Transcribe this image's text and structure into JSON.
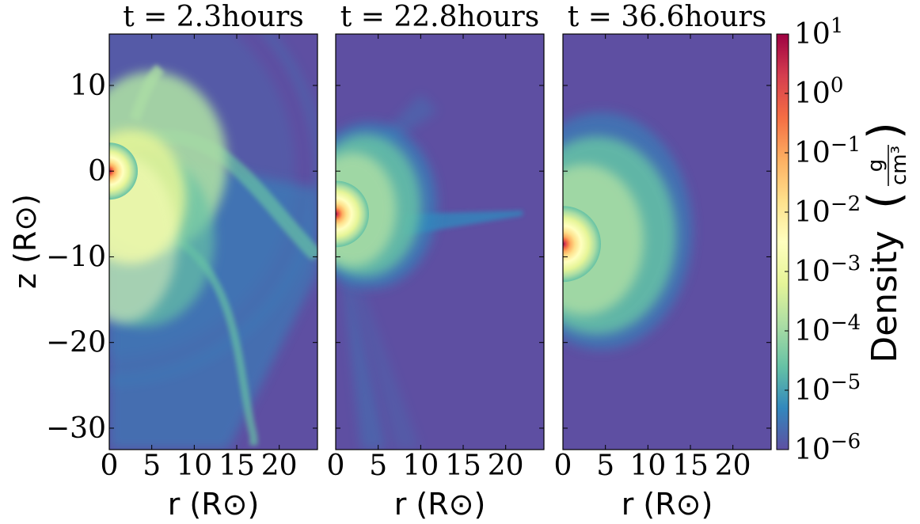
{
  "chart_data": {
    "type": "heatmap",
    "panels": [
      {
        "title": "t = 2.3hours",
        "xlabel": "r  (R$_\\odot$)",
        "ylabel": "z  (R$_\\odot$)",
        "xlim": [
          0,
          24.5
        ],
        "ylim": [
          -32.5,
          16
        ],
        "xticks": [
          0,
          5,
          10,
          15,
          20
        ],
        "yticks": [
          10,
          0,
          -10,
          -20,
          -30
        ],
        "xtick_labels": [
          "0",
          "5",
          "10",
          "15",
          "20"
        ],
        "ytick_labels": [
          "10",
          "0",
          "−10",
          "−20",
          "−30"
        ],
        "core_center": [
          0,
          0
        ]
      },
      {
        "title": "t = 22.8hours",
        "xlabel": "r  (R$_\\odot$)",
        "xlim": [
          0,
          24.5
        ],
        "ylim": [
          -32.5,
          16
        ],
        "xticks": [
          0,
          5,
          10,
          15,
          20
        ],
        "xtick_labels": [
          "0",
          "5",
          "10",
          "15",
          "20"
        ],
        "core_center": [
          0,
          -5
        ]
      },
      {
        "title": "t = 36.6hours",
        "xlabel": "r  (R$_\\odot$)",
        "xlim": [
          0,
          24.5
        ],
        "ylim": [
          -32.5,
          16
        ],
        "xticks": [
          0,
          5,
          10,
          15,
          20
        ],
        "xtick_labels": [
          "0",
          "5",
          "10",
          "15",
          "20"
        ],
        "core_center": [
          0,
          -8.5
        ]
      }
    ],
    "colorbar": {
      "label": "Density",
      "unit_numerator": "g",
      "unit_denominator": "cm³",
      "scale": "log",
      "range": [
        1e-06,
        10
      ],
      "colormap": "Spectral_r",
      "ticks": [
        {
          "base": "10",
          "exp": "1"
        },
        {
          "base": "10",
          "exp": "0"
        },
        {
          "base": "10",
          "exp": "−1"
        },
        {
          "base": "10",
          "exp": "−2"
        },
        {
          "base": "10",
          "exp": "−3"
        },
        {
          "base": "10",
          "exp": "−4"
        },
        {
          "base": "10",
          "exp": "−5"
        },
        {
          "base": "10",
          "exp": "−6"
        }
      ]
    },
    "colors": {
      "background": "#5e4fa2",
      "c_blue": "#3288bd",
      "c_teal": "#66c2a5",
      "c_green": "#abdda4",
      "c_lime": "#e6f598",
      "c_pale": "#ffffbf",
      "c_sand": "#fee08b",
      "c_orange": "#fdae61",
      "c_coral": "#f46d43",
      "c_red": "#d53e4f",
      "c_crimson": "#9e0142"
    }
  }
}
